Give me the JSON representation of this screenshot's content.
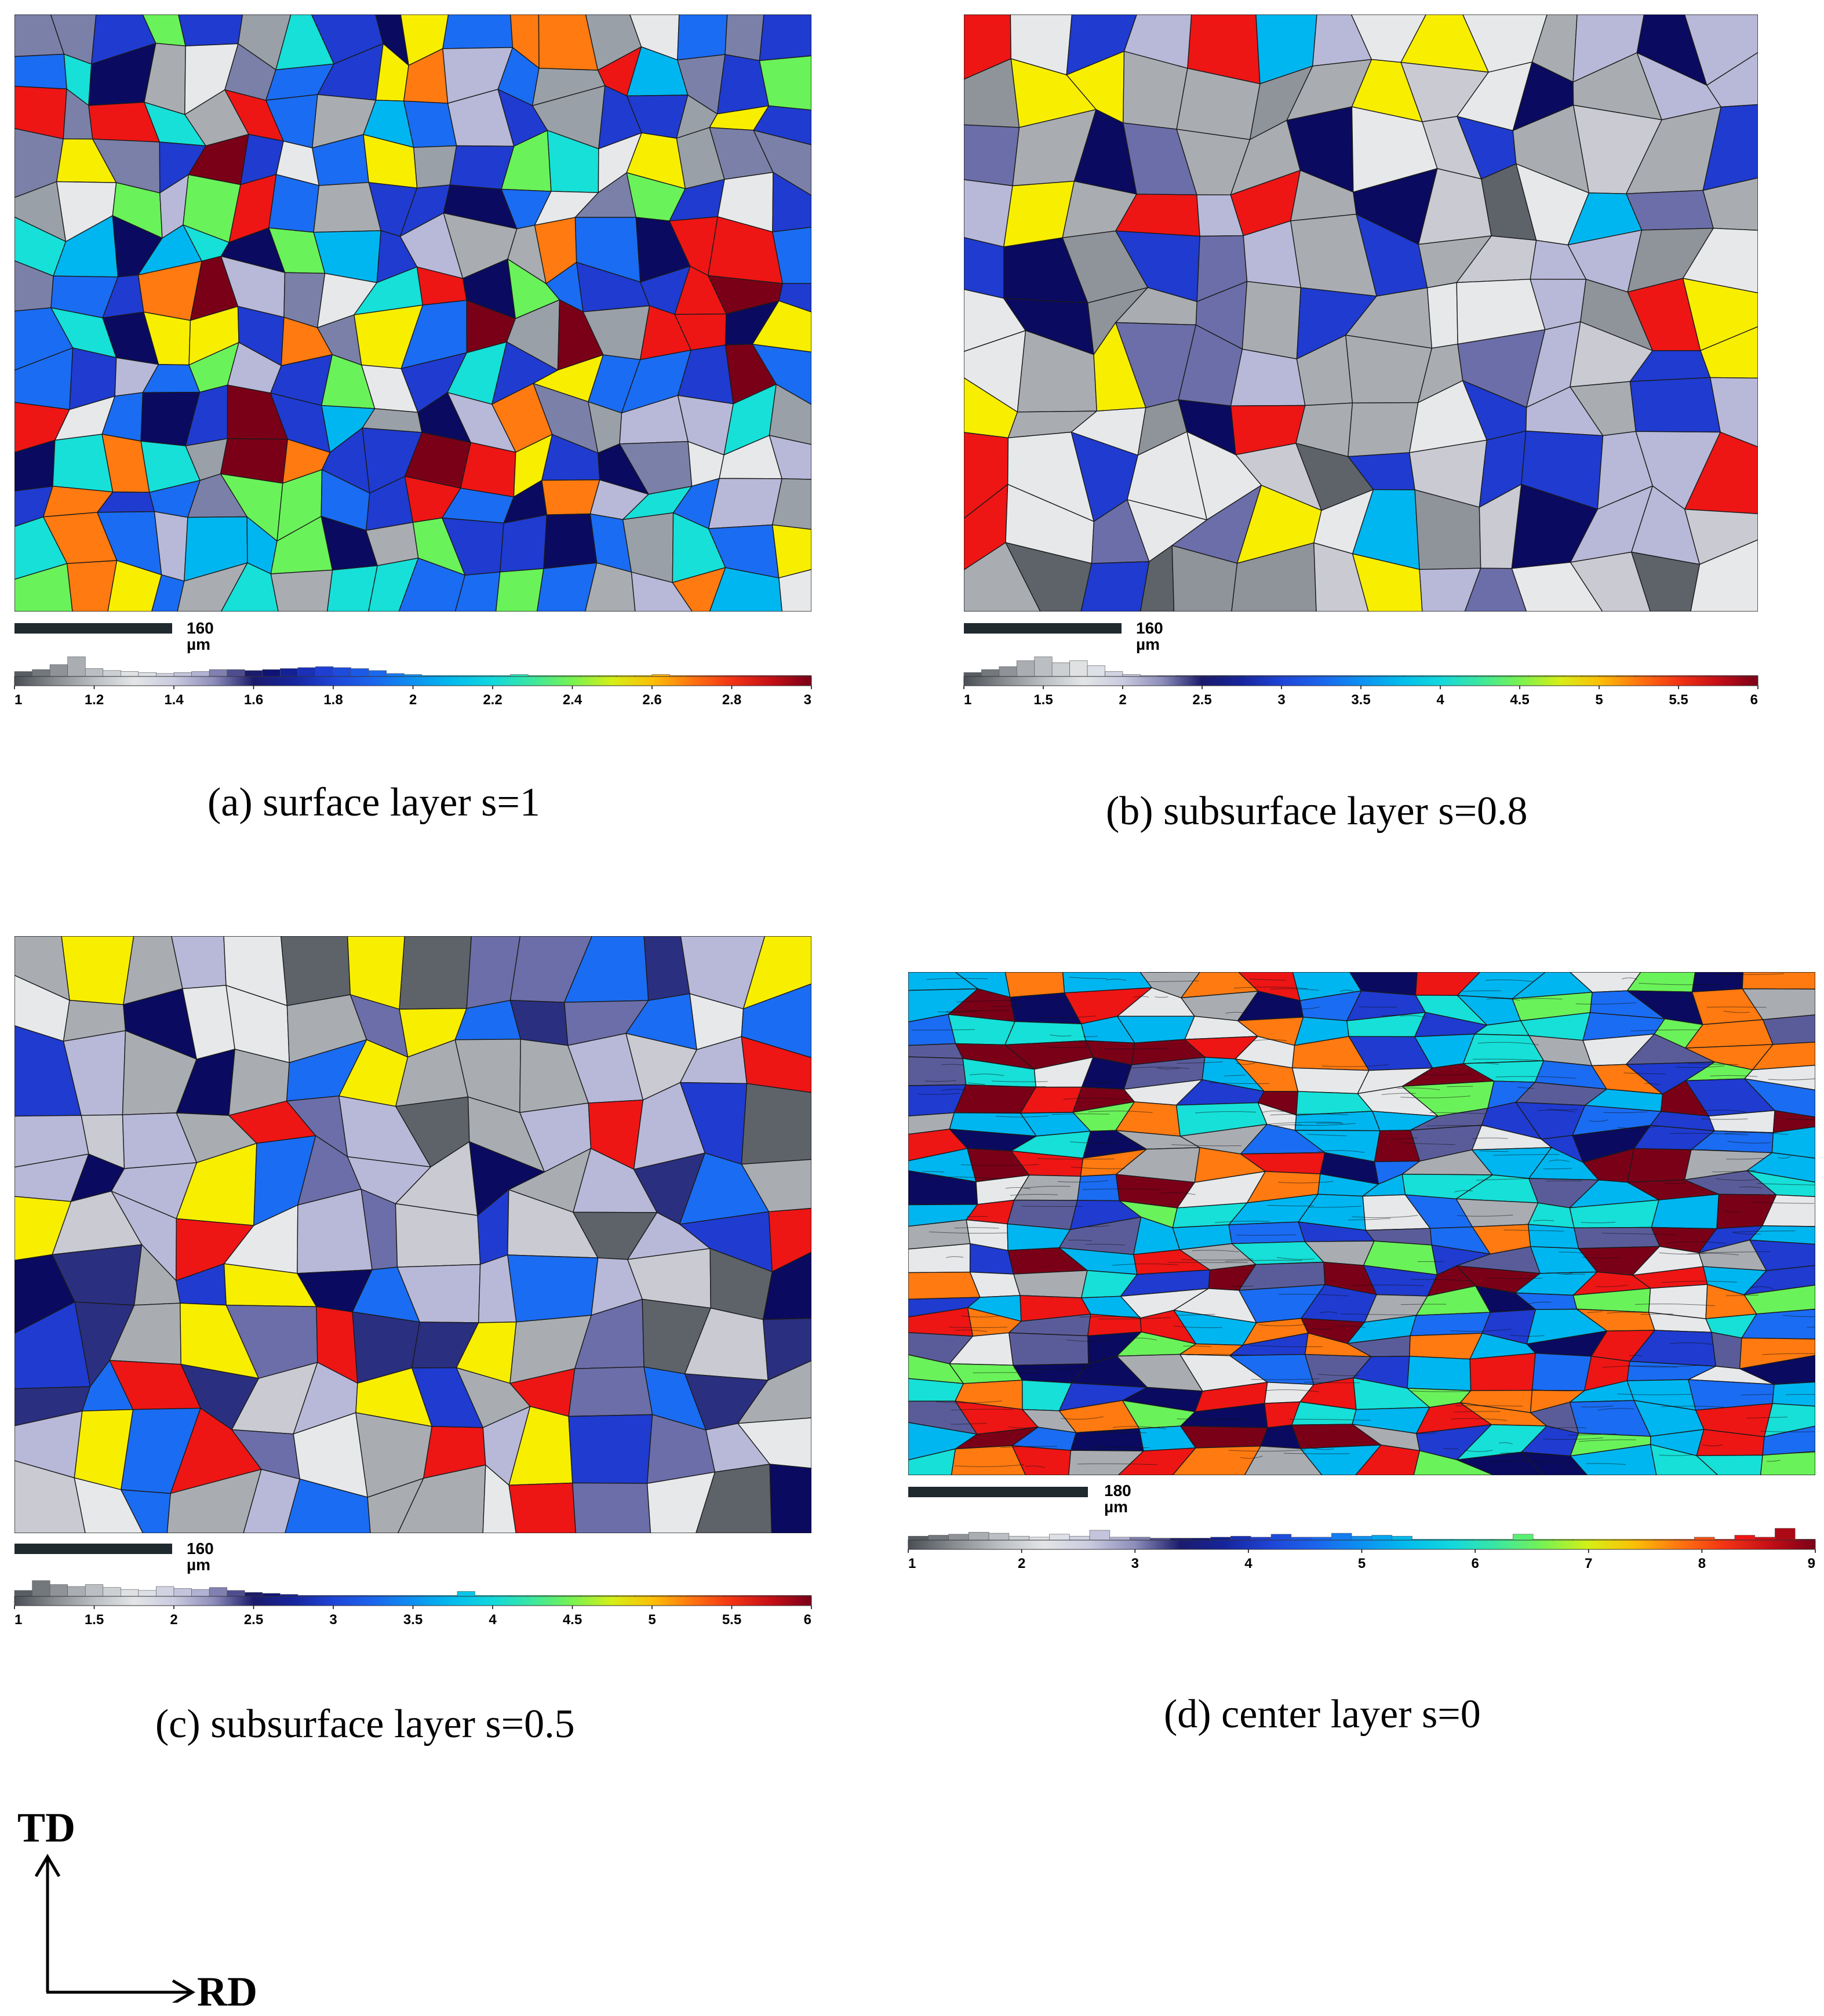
{
  "panels": [
    {
      "id": "a",
      "caption": "(a) surface layer s=1",
      "scale_label": "160 µm",
      "legend": {
        "ticks": [
          "1",
          "1.2",
          "1.4",
          "1.6",
          "1.8",
          "2",
          "2.2",
          "2.4",
          "2.6",
          "2.8",
          "3"
        ],
        "min": 1,
        "max": 3,
        "histogram": [
          0.25,
          0.35,
          0.6,
          1.0,
          0.4,
          0.3,
          0.25,
          0.2,
          0.15,
          0.2,
          0.25,
          0.35,
          0.35,
          0.3,
          0.35,
          0.4,
          0.45,
          0.5,
          0.45,
          0.4,
          0.3,
          0.15,
          0.1,
          0.05,
          0.05,
          0.05,
          0.05,
          0.05,
          0.1,
          0.05,
          0.05,
          0.05,
          0.05,
          0.05,
          0.05,
          0.05,
          0.1,
          0.05,
          0.05,
          0.05,
          0.05,
          0.05,
          0.05,
          0.05,
          0.05
        ]
      }
    },
    {
      "id": "b",
      "caption": "(b) subsurface layer s=0.8",
      "scale_label": "160 µm",
      "legend": {
        "ticks": [
          "1",
          "1.5",
          "2",
          "2.5",
          "3",
          "3.5",
          "4",
          "4.5",
          "5",
          "5.5",
          "6"
        ],
        "min": 1,
        "max": 6,
        "histogram": [
          0.2,
          0.35,
          0.5,
          0.8,
          1.0,
          0.7,
          0.8,
          0.55,
          0.25,
          0.1,
          0.05,
          0.05,
          0.05,
          0.05,
          0.05,
          0.05,
          0.05,
          0.05,
          0.05,
          0.05,
          0.05,
          0.05,
          0.05,
          0.05,
          0.05,
          0.05,
          0.05,
          0.05,
          0.05,
          0.05,
          0.05,
          0.05,
          0.05,
          0.05,
          0.05,
          0.05,
          0.05,
          0.05,
          0.05,
          0.05,
          0.05,
          0.05,
          0.05,
          0.05,
          0.05
        ]
      }
    },
    {
      "id": "c",
      "caption": "(c) subsurface layer s=0.5",
      "scale_label": "160 µm",
      "legend": {
        "ticks": [
          "1",
          "1.5",
          "2",
          "2.5",
          "3",
          "3.5",
          "4",
          "4.5",
          "5",
          "5.5",
          "6"
        ],
        "min": 1,
        "max": 6,
        "histogram": [
          0.3,
          0.8,
          0.6,
          0.5,
          0.6,
          0.45,
          0.35,
          0.3,
          0.5,
          0.4,
          0.35,
          0.45,
          0.3,
          0.2,
          0.15,
          0.1,
          0.05,
          0.05,
          0.05,
          0.05,
          0.05,
          0.05,
          0.05,
          0.05,
          0.05,
          0.25,
          0.05,
          0.05,
          0.05,
          0.05,
          0.05,
          0.05,
          0.05,
          0.05,
          0.05,
          0.05,
          0.05,
          0.05,
          0.05,
          0.05,
          0.05,
          0.05,
          0.05,
          0.05,
          0.05
        ]
      }
    },
    {
      "id": "d",
      "caption": "(d) center layer s=0",
      "scale_label": "180 µm",
      "legend": {
        "ticks": [
          "1",
          "2",
          "3",
          "4",
          "5",
          "6",
          "7",
          "8",
          "9"
        ],
        "min": 1,
        "max": 9,
        "histogram": [
          0.2,
          0.25,
          0.3,
          0.4,
          0.35,
          0.2,
          0.15,
          0.3,
          0.2,
          0.5,
          0.15,
          0.15,
          0.1,
          0.1,
          0.1,
          0.15,
          0.2,
          0.15,
          0.3,
          0.15,
          0.15,
          0.35,
          0.2,
          0.25,
          0.2,
          0.05,
          0.05,
          0.05,
          0.05,
          0.05,
          0.3,
          0.05,
          0.05,
          0.05,
          0.05,
          0.05,
          0.05,
          0.05,
          0.05,
          0.15,
          0.05,
          0.25,
          0.15,
          0.6,
          0.05
        ]
      }
    }
  ],
  "axes": {
    "vertical": "TD",
    "horizontal": "RD"
  },
  "colors": {
    "gray_low": "#4a4f55",
    "gray_mid": "#a9adb2",
    "gray_light": "#e6e8ea",
    "lavender": "#b8b8d8",
    "navy": "#0a0a60",
    "blue": "#1f3bd0",
    "bright_blue": "#1a6cf2",
    "sky": "#00b6f0",
    "cyan": "#16e0d8",
    "green": "#6af25a",
    "yellow": "#f8ee00",
    "orange": "#ff7a10",
    "red": "#ee1515",
    "maroon": "#7a0018"
  }
}
